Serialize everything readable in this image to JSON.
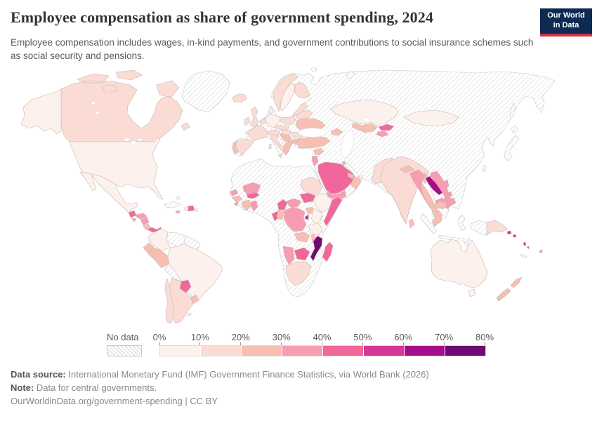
{
  "header": {
    "title": "Employee compensation as share of government spending, 2024",
    "subtitle": "Employee compensation includes wages, in-kind payments, and government contributions to social insurance schemes such as social security and pensions.",
    "logo": {
      "line1": "Our World",
      "line2": "in Data",
      "bg_color": "#0e2a52",
      "accent_color": "#d5313d"
    }
  },
  "chart_data": {
    "type": "choropleth_map",
    "title": "Employee compensation as share of government spending, 2024",
    "no_data_label": "No data",
    "legend_ticks": [
      "0%",
      "10%",
      "20%",
      "30%",
      "40%",
      "50%",
      "60%",
      "70%",
      "80%"
    ],
    "hatch_color": "#d2d2d2",
    "scale": [
      {
        "range": "0-10%",
        "color": "#fdf1ed"
      },
      {
        "range": "10-20%",
        "color": "#fadcd5"
      },
      {
        "range": "20-30%",
        "color": "#f8beb2"
      },
      {
        "range": "30-40%",
        "color": "#f79db2"
      },
      {
        "range": "40-50%",
        "color": "#f1679c"
      },
      {
        "range": "50-60%",
        "color": "#d53895"
      },
      {
        "range": "60-70%",
        "color": "#a60d8a"
      },
      {
        "range": "70-80%",
        "color": "#6d0b72"
      }
    ],
    "regions": [
      {
        "id": "canada",
        "bucket": 1
      },
      {
        "id": "united-states",
        "bucket": 0
      },
      {
        "id": "mexico",
        "bucket": 0
      },
      {
        "id": "guatemala",
        "bucket": 4
      },
      {
        "id": "honduras",
        "bucket": 3
      },
      {
        "id": "el-salvador",
        "bucket": 3
      },
      {
        "id": "nicaragua",
        "bucket": 3
      },
      {
        "id": "costa-rica",
        "bucket": 2
      },
      {
        "id": "panama",
        "bucket": 4
      },
      {
        "id": "haiti",
        "bucket": 0
      },
      {
        "id": "dominican-republic",
        "bucket": 4
      },
      {
        "id": "jamaica",
        "bucket": 3
      },
      {
        "id": "colombia",
        "bucket": 0
      },
      {
        "id": "ecuador",
        "bucket": 2
      },
      {
        "id": "peru",
        "bucket": 2
      },
      {
        "id": "brazil",
        "bucket": 0
      },
      {
        "id": "paraguay",
        "bucket": 4
      },
      {
        "id": "uruguay",
        "bucket": 2
      },
      {
        "id": "argentina",
        "bucket": 1
      },
      {
        "id": "chile",
        "bucket": 1
      },
      {
        "id": "iceland",
        "bucket": 1
      },
      {
        "id": "united-kingdom",
        "bucket": 1
      },
      {
        "id": "ireland",
        "bucket": 1
      },
      {
        "id": "norway",
        "bucket": 1
      },
      {
        "id": "sweden",
        "bucket": 0
      },
      {
        "id": "finland",
        "bucket": 1
      },
      {
        "id": "denmark",
        "bucket": 0
      },
      {
        "id": "germany",
        "bucket": 0
      },
      {
        "id": "netherlands-belgium",
        "bucket": 1
      },
      {
        "id": "france",
        "bucket": 1
      },
      {
        "id": "spain",
        "bucket": 1
      },
      {
        "id": "portugal",
        "bucket": 2
      },
      {
        "id": "italy",
        "bucket": 1
      },
      {
        "id": "switzerland-austria",
        "bucket": 1
      },
      {
        "id": "czechia-slovakia",
        "bucket": 1
      },
      {
        "id": "poland",
        "bucket": 1
      },
      {
        "id": "hungary",
        "bucket": 1
      },
      {
        "id": "balkans",
        "bucket": 2
      },
      {
        "id": "romania",
        "bucket": 1
      },
      {
        "id": "bulgaria",
        "bucket": 2
      },
      {
        "id": "greece",
        "bucket": 2
      },
      {
        "id": "baltics",
        "bucket": 1
      },
      {
        "id": "belarus",
        "bucket": 1
      },
      {
        "id": "ukraine",
        "bucket": 2
      },
      {
        "id": "turkey",
        "bucket": 2
      },
      {
        "id": "caucasus",
        "bucket": 2
      },
      {
        "id": "syria",
        "bucket": 2
      },
      {
        "id": "israel-jordan",
        "bucket": 3
      },
      {
        "id": "saudi-arabia",
        "bucket": 4
      },
      {
        "id": "yemen",
        "bucket": 3
      },
      {
        "id": "oman",
        "bucket": 2
      },
      {
        "id": "united-arab-emirates",
        "bucket": 2
      },
      {
        "id": "kuwait",
        "bucket": 3
      },
      {
        "id": "kazakhstan",
        "bucket": 0
      },
      {
        "id": "uzbekistan",
        "bucket": 2
      },
      {
        "id": "kyrgyzstan",
        "bucket": 4
      },
      {
        "id": "tajikistan",
        "bucket": 3
      },
      {
        "id": "pakistan",
        "bucket": 1
      },
      {
        "id": "india",
        "bucket": 1
      },
      {
        "id": "nepal",
        "bucket": 2
      },
      {
        "id": "bangladesh",
        "bucket": 2
      },
      {
        "id": "sri-lanka",
        "bucket": 2
      },
      {
        "id": "mongolia",
        "bucket": 0
      },
      {
        "id": "myanmar",
        "bucket": 3
      },
      {
        "id": "thailand",
        "bucket": 2
      },
      {
        "id": "laos",
        "bucket": 6
      },
      {
        "id": "vietnam",
        "bucket": 3
      },
      {
        "id": "cambodia",
        "bucket": 3
      },
      {
        "id": "malaysia",
        "bucket": 2
      },
      {
        "id": "philippines",
        "bucket": 3
      },
      {
        "id": "papua-new-guinea",
        "bucket": 1
      },
      {
        "id": "australia",
        "bucket": 0
      },
      {
        "id": "new-zealand",
        "bucket": 2
      },
      {
        "id": "fiji",
        "bucket": 3
      },
      {
        "id": "solomon-islands",
        "bucket": 5
      },
      {
        "id": "vanuatu",
        "bucket": 5
      },
      {
        "id": "senegal",
        "bucket": 3
      },
      {
        "id": "guinea",
        "bucket": 2
      },
      {
        "id": "sierra-leone",
        "bucket": 3
      },
      {
        "id": "cote-divoire",
        "bucket": 2
      },
      {
        "id": "ghana",
        "bucket": 3
      },
      {
        "id": "burkina-faso",
        "bucket": 4
      },
      {
        "id": "mali",
        "bucket": 3
      },
      {
        "id": "sudan",
        "bucket": 1
      },
      {
        "id": "south-sudan",
        "bucket": 4
      },
      {
        "id": "ethiopia",
        "bucket": 0
      },
      {
        "id": "somalia",
        "bucket": 4
      },
      {
        "id": "uganda",
        "bucket": 2
      },
      {
        "id": "kenya",
        "bucket": 0
      },
      {
        "id": "rwanda-burundi",
        "bucket": 5
      },
      {
        "id": "tanzania",
        "bucket": 0
      },
      {
        "id": "cameroon",
        "bucket": 4
      },
      {
        "id": "central-african-republic",
        "bucket": 3
      },
      {
        "id": "gabon",
        "bucket": 4
      },
      {
        "id": "congo",
        "bucket": 2
      },
      {
        "id": "dr-congo",
        "bucket": 3
      },
      {
        "id": "zambia",
        "bucket": 2
      },
      {
        "id": "malawi",
        "bucket": 2
      },
      {
        "id": "mozambique",
        "bucket": 7
      },
      {
        "id": "botswana",
        "bucket": 4
      },
      {
        "id": "namibia",
        "bucket": 3
      },
      {
        "id": "south-africa",
        "bucket": 1
      },
      {
        "id": "madagascar",
        "bucket": 4
      }
    ]
  },
  "footer": {
    "data_source_label": "Data source:",
    "data_source": "International Monetary Fund (IMF) Government Finance Statistics, via World Bank (2026)",
    "note_label": "Note:",
    "note": "Data for central governments.",
    "attribution": "OurWorldinData.org/government-spending | CC BY"
  }
}
